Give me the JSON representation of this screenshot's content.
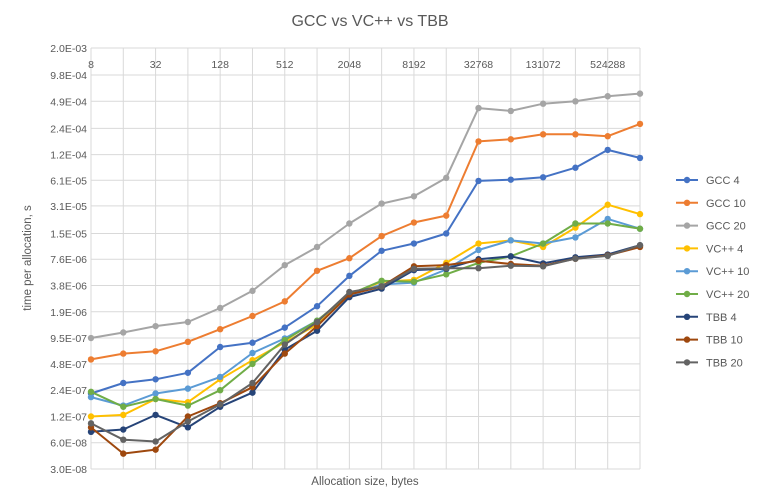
{
  "chart_data": {
    "type": "line",
    "title": "GCC vs VC++ vs TBB",
    "xlabel": "Allocation size, bytes",
    "ylabel": "time per allocation, s",
    "y_scale": "log2",
    "ylim": [
      3e-08,
      0.002
    ],
    "y_ticks": [
      "2.0E-03",
      "9.8E-04",
      "4.9E-04",
      "2.4E-04",
      "1.2E-04",
      "6.1E-05",
      "3.1E-05",
      "1.5E-05",
      "7.6E-06",
      "3.8E-06",
      "1.9E-06",
      "9.5E-07",
      "4.8E-07",
      "2.4E-07",
      "1.2E-07",
      "6.0E-08",
      "3.0E-08"
    ],
    "x_scale": "log2",
    "x": [
      8,
      16,
      32,
      64,
      128,
      256,
      512,
      1024,
      2048,
      4096,
      8192,
      16384,
      32768,
      65536,
      131072,
      262144,
      524288,
      1048576
    ],
    "x_tick_labels": [
      "8",
      "32",
      "128",
      "512",
      "2048",
      "8192",
      "32768",
      "131072",
      "524288"
    ],
    "x_tick_values": [
      8,
      32,
      128,
      512,
      2048,
      8192,
      32768,
      131072,
      524288
    ],
    "legend_position": "right",
    "grid": true,
    "series": [
      {
        "name": "GCC 4",
        "color": "#4472C4",
        "values": [
          2.2e-07,
          2.9e-07,
          3.2e-07,
          3.8e-07,
          7.5e-07,
          8.4e-07,
          1.25e-06,
          2.2e-06,
          4.9e-06,
          9.5e-06,
          1.15e-05,
          1.5e-05,
          6e-05,
          6.2e-05,
          6.6e-05,
          8.5e-05,
          0.000136,
          0.00011
        ]
      },
      {
        "name": "GCC 10",
        "color": "#ED7D31",
        "values": [
          5.4e-07,
          6.3e-07,
          6.7e-07,
          8.6e-07,
          1.2e-06,
          1.7e-06,
          2.5e-06,
          5.6e-06,
          7.8e-06,
          1.4e-05,
          2e-05,
          2.4e-05,
          0.00017,
          0.00018,
          0.000205,
          0.000205,
          0.000195,
          0.00027
        ]
      },
      {
        "name": "GCC 20",
        "color": "#A5A5A5",
        "values": [
          9.5e-07,
          1.1e-06,
          1.3e-06,
          1.45e-06,
          2.1e-06,
          3.3e-06,
          6.5e-06,
          1.05e-05,
          1.95e-05,
          3.3e-05,
          4e-05,
          6.5e-05,
          0.00041,
          0.00038,
          0.00046,
          0.00049,
          0.00056,
          0.0006
        ]
      },
      {
        "name": "VC++ 4",
        "color": "#FFC000",
        "values": [
          1.2e-07,
          1.25e-07,
          1.9e-07,
          1.75e-07,
          3.2e-07,
          5.3e-07,
          8.5e-07,
          1.35e-06,
          3e-06,
          4.2e-06,
          4.4e-06,
          6.9e-06,
          1.15e-05,
          1.25e-05,
          1.05e-05,
          1.75e-05,
          3.2e-05,
          2.5e-05
        ]
      },
      {
        "name": "VC++ 10",
        "color": "#5B9BD5",
        "values": [
          2e-07,
          1.6e-07,
          2.2e-07,
          2.5e-07,
          3.4e-07,
          6.4e-07,
          9.4e-07,
          1.5e-06,
          2.9e-06,
          3.9e-06,
          4.1e-06,
          5.8e-06,
          9.7e-06,
          1.25e-05,
          1.15e-05,
          1.35e-05,
          2.2e-05,
          1.7e-05
        ]
      },
      {
        "name": "VC++ 20",
        "color": "#70AD47",
        "values": [
          2.3e-07,
          1.55e-07,
          1.9e-07,
          1.6e-07,
          2.4e-07,
          4.8e-07,
          9e-07,
          1.5e-06,
          3e-06,
          4.3e-06,
          4.2e-06,
          5.1e-06,
          6.9e-06,
          8.2e-06,
          1.15e-05,
          1.95e-05,
          1.95e-05,
          1.7e-05
        ]
      },
      {
        "name": "TBB 4",
        "color": "#264478",
        "values": [
          8e-08,
          8.5e-08,
          1.25e-07,
          9e-08,
          1.55e-07,
          2.25e-07,
          7e-07,
          1.15e-06,
          2.8e-06,
          3.5e-06,
          5.7e-06,
          5.9e-06,
          7.6e-06,
          8.2e-06,
          6.8e-06,
          8e-06,
          8.6e-06,
          1.1e-05
        ]
      },
      {
        "name": "TBB 10",
        "color": "#9E480E",
        "values": [
          9e-08,
          4.5e-08,
          5e-08,
          1.2e-07,
          1.7e-07,
          2.6e-07,
          6.3e-07,
          1.3e-06,
          3e-06,
          3.7e-06,
          6.3e-06,
          6.5e-06,
          7.3e-06,
          6.7e-06,
          6.4e-06,
          7.7e-06,
          8.4e-06,
          1.05e-05
        ]
      },
      {
        "name": "TBB 20",
        "color": "#636363",
        "values": [
          1e-07,
          6.5e-08,
          6.2e-08,
          1.05e-07,
          1.65e-07,
          2.9e-07,
          8e-07,
          1.45e-06,
          3.2e-06,
          3.7e-06,
          5.9e-06,
          6e-06,
          6e-06,
          6.4e-06,
          6.3e-06,
          7.7e-06,
          8.3e-06,
          1.1e-05
        ]
      }
    ]
  }
}
